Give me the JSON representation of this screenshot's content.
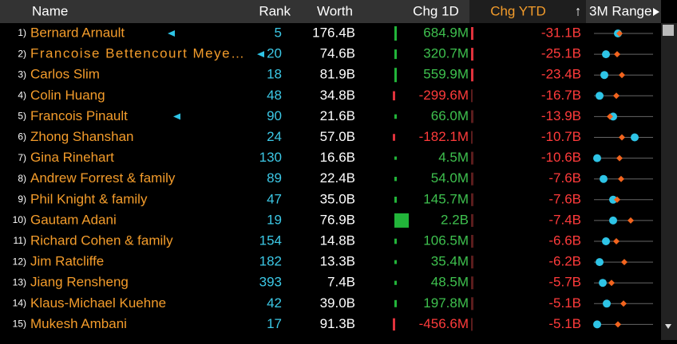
{
  "header": {
    "columns": [
      "Name",
      "Rank",
      "Worth",
      "Chg 1D",
      "Chg YTD",
      "3M Range"
    ],
    "sort_indicator": "↑"
  },
  "table": {
    "rows": [
      {
        "num": "1)",
        "name": "Bernard Arnault",
        "rank": 5,
        "worth": "176.4B",
        "chg_1d": "684.9M",
        "chg_ytd": "-31.1B"
      },
      {
        "num": "2)",
        "name": "Francoise Bettencourt Meye…",
        "rank": 20,
        "worth": "74.6B",
        "chg_1d": "320.7M",
        "chg_ytd": "-25.1B"
      },
      {
        "num": "3)",
        "name": "Carlos Slim",
        "rank": 18,
        "worth": "81.9B",
        "chg_1d": "559.9M",
        "chg_ytd": "-23.4B"
      },
      {
        "num": "4)",
        "name": "Colin Huang",
        "rank": 48,
        "worth": "34.8B",
        "chg_1d": "-299.6M",
        "chg_ytd": "-16.7B"
      },
      {
        "num": "5)",
        "name": "Francois Pinault",
        "rank": 90,
        "worth": "21.6B",
        "chg_1d": "66.0M",
        "chg_ytd": "-13.9B"
      },
      {
        "num": "6)",
        "name": "Zhong Shanshan",
        "rank": 24,
        "worth": "57.0B",
        "chg_1d": "-182.1M",
        "chg_ytd": "-10.7B"
      },
      {
        "num": "7)",
        "name": "Gina Rinehart",
        "rank": 130,
        "worth": "16.6B",
        "chg_1d": "4.5M",
        "chg_ytd": "-10.6B"
      },
      {
        "num": "8)",
        "name": "Andrew Forrest & family",
        "rank": 89,
        "worth": "22.4B",
        "chg_1d": "54.0M",
        "chg_ytd": "-7.6B"
      },
      {
        "num": "9)",
        "name": "Phil Knight & family",
        "rank": 47,
        "worth": "35.0B",
        "chg_1d": "145.7M",
        "chg_ytd": "-7.6B"
      },
      {
        "num": "10)",
        "name": "Gautam Adani",
        "rank": 19,
        "worth": "76.9B",
        "chg_1d": "2.2B",
        "chg_ytd": "-7.4B"
      },
      {
        "num": "11)",
        "name": "Richard Cohen & family",
        "rank": 154,
        "worth": "14.8B",
        "chg_1d": "106.5M",
        "chg_ytd": "-6.6B"
      },
      {
        "num": "12)",
        "name": "Jim Ratcliffe",
        "rank": 182,
        "worth": "13.3B",
        "chg_1d": "35.4M",
        "chg_ytd": "-6.2B"
      },
      {
        "num": "13)",
        "name": "Jiang Rensheng",
        "rank": 393,
        "worth": "7.4B",
        "chg_1d": "48.5M",
        "chg_ytd": "-5.7B"
      },
      {
        "num": "14)",
        "name": "Klaus-Michael Kuehne",
        "rank": 42,
        "worth": "39.0B",
        "chg_1d": "197.8M",
        "chg_ytd": "-5.1B"
      },
      {
        "num": "15)",
        "name": "Mukesh Ambani",
        "rank": 17,
        "worth": "91.3B",
        "chg_1d": "-456.6M",
        "chg_ytd": "-5.1B"
      }
    ]
  }
}
